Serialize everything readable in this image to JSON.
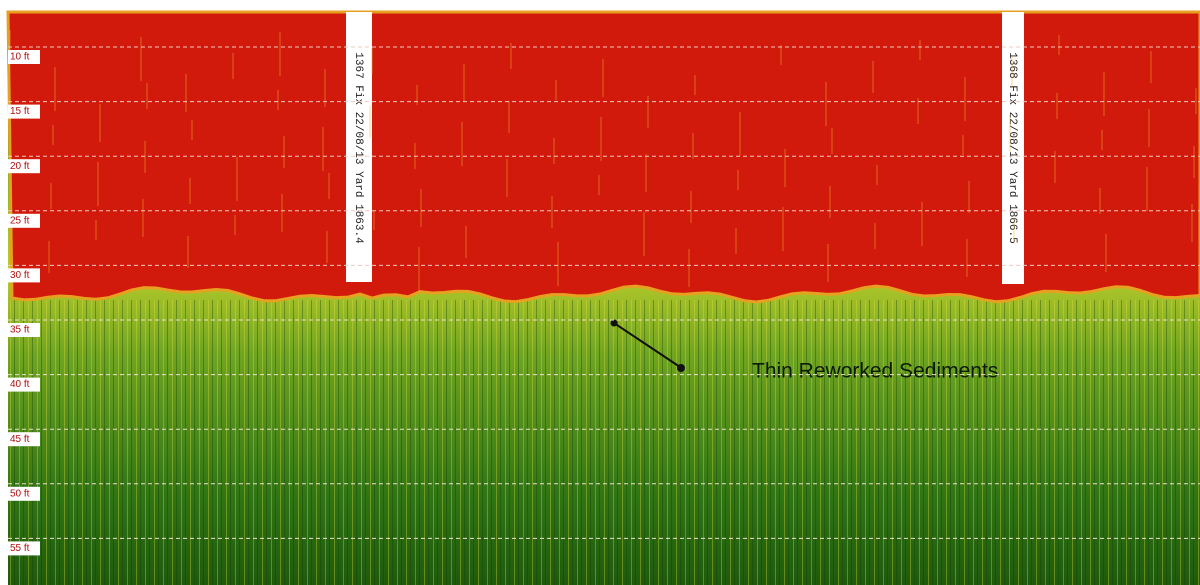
{
  "depth_labels": [
    "10 ft",
    "15 ft",
    "20 ft",
    "25 ft",
    "30 ft",
    "35 ft",
    "40 ft",
    "45 ft",
    "50 ft",
    "55 ft"
  ],
  "fix_markers": [
    "1367 Fix 22/08/13 Yard 1863.4",
    "1368 Fix 22/08/13 Yard 1866.5"
  ],
  "annotation": "Thin Reworked Sediments"
}
